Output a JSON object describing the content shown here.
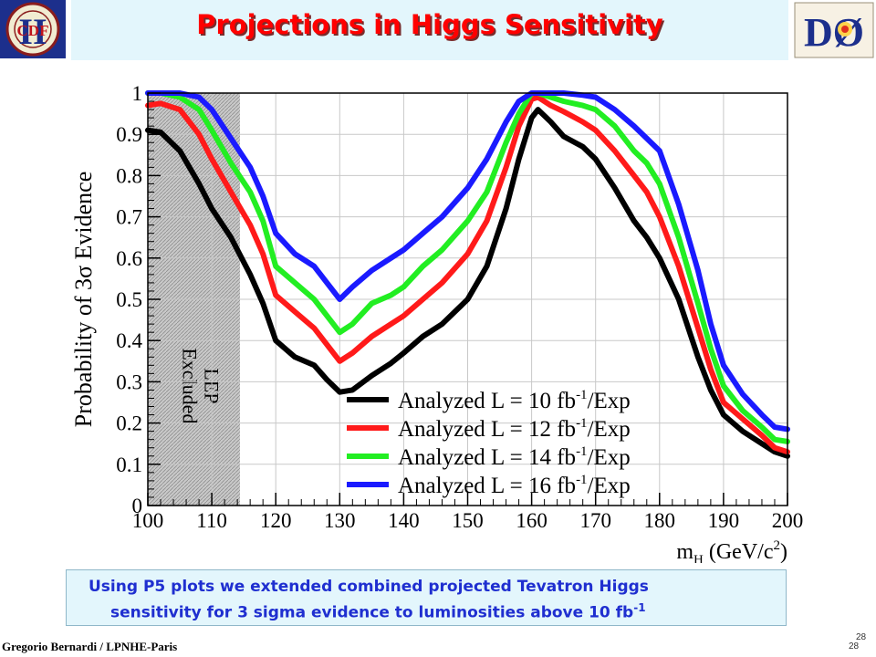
{
  "header": {
    "title": "Projections in Higgs Sensitivity",
    "left_logo": {
      "icon": "cdf-logo-icon",
      "text": "CDF",
      "big_letter": "II"
    },
    "right_logo": {
      "icon": "d0-logo-icon",
      "text": "DØ"
    }
  },
  "chart_data": {
    "type": "line",
    "title": "",
    "xlabel": "m",
    "xlabel_sub": "H",
    "xlabel_units": "(GeV/c",
    "xlabel_units_sup": "2",
    "xlabel_units_end": ")",
    "ylabel": "Probability of 3σ Evidence",
    "xlim": [
      100,
      200
    ],
    "ylim": [
      0,
      1
    ],
    "x_ticks": [
      "100",
      "110",
      "120",
      "130",
      "140",
      "150",
      "160",
      "170",
      "180",
      "190",
      "200"
    ],
    "y_ticks": [
      "0",
      "0.1",
      "0.2",
      "0.3",
      "0.4",
      "0.5",
      "0.6",
      "0.7",
      "0.8",
      "0.9",
      "1"
    ],
    "grid": true,
    "legend_position": "bottom-right",
    "excluded_region": {
      "from": 100,
      "to": 114.4,
      "label_line1": "LEP",
      "label_line2": "Excluded"
    },
    "x": [
      100,
      102,
      105,
      108,
      110,
      113,
      116,
      118,
      120,
      123,
      126,
      128,
      130,
      132,
      135,
      138,
      140,
      143,
      146,
      150,
      153,
      156,
      158,
      160,
      161,
      163,
      165,
      168,
      170,
      173,
      176,
      178,
      180,
      183,
      186,
      188,
      190,
      193,
      196,
      198,
      200
    ],
    "series": [
      {
        "name": "Analyzed L = 10 fb-1/Exp",
        "legend_prefix": "Analyzed L = 10 fb",
        "legend_sup": "-1",
        "legend_suffix": "/Exp",
        "color": "#000000",
        "values": [
          0.91,
          0.905,
          0.86,
          0.78,
          0.72,
          0.65,
          0.56,
          0.49,
          0.4,
          0.36,
          0.34,
          0.305,
          0.275,
          0.28,
          0.315,
          0.345,
          0.37,
          0.41,
          0.44,
          0.5,
          0.58,
          0.72,
          0.84,
          0.94,
          0.96,
          0.93,
          0.895,
          0.87,
          0.84,
          0.77,
          0.69,
          0.65,
          0.6,
          0.5,
          0.36,
          0.28,
          0.22,
          0.18,
          0.15,
          0.13,
          0.12
        ]
      },
      {
        "name": "Analyzed L = 12 fb-1/Exp",
        "legend_prefix": "Analyzed L = 12 fb",
        "legend_sup": "-1",
        "legend_suffix": "/Exp",
        "color": "#ff1a1a",
        "values": [
          0.97,
          0.975,
          0.96,
          0.9,
          0.84,
          0.76,
          0.68,
          0.61,
          0.51,
          0.47,
          0.43,
          0.39,
          0.35,
          0.37,
          0.41,
          0.44,
          0.46,
          0.5,
          0.54,
          0.61,
          0.69,
          0.82,
          0.92,
          0.985,
          0.99,
          0.97,
          0.955,
          0.93,
          0.91,
          0.86,
          0.8,
          0.76,
          0.7,
          0.58,
          0.43,
          0.33,
          0.25,
          0.21,
          0.17,
          0.14,
          0.13
        ]
      },
      {
        "name": "Analyzed L = 14 fb-1/Exp",
        "legend_prefix": "Analyzed L = 14 fb",
        "legend_sup": "-1",
        "legend_suffix": "/Exp",
        "color": "#22ee22",
        "values": [
          1.0,
          1.0,
          0.99,
          0.96,
          0.91,
          0.83,
          0.76,
          0.69,
          0.58,
          0.54,
          0.5,
          0.46,
          0.42,
          0.44,
          0.49,
          0.51,
          0.53,
          0.58,
          0.62,
          0.69,
          0.76,
          0.88,
          0.95,
          1.0,
          1.0,
          0.99,
          0.98,
          0.97,
          0.96,
          0.92,
          0.86,
          0.83,
          0.78,
          0.65,
          0.49,
          0.38,
          0.29,
          0.23,
          0.19,
          0.16,
          0.155
        ]
      },
      {
        "name": "Analyzed L = 16 fb-1/Exp",
        "legend_prefix": "Analyzed L = 16 fb",
        "legend_sup": "-1",
        "legend_suffix": "/Exp",
        "color": "#1a1aff",
        "values": [
          1.0,
          1.0,
          1.0,
          0.99,
          0.96,
          0.89,
          0.82,
          0.75,
          0.66,
          0.61,
          0.58,
          0.54,
          0.5,
          0.53,
          0.57,
          0.6,
          0.62,
          0.66,
          0.7,
          0.77,
          0.84,
          0.93,
          0.98,
          1.0,
          1.0,
          1.0,
          1.0,
          0.995,
          0.99,
          0.96,
          0.92,
          0.89,
          0.86,
          0.73,
          0.57,
          0.44,
          0.34,
          0.27,
          0.22,
          0.19,
          0.185
        ]
      }
    ]
  },
  "caption": {
    "line1": "Using P5 plots we extended combined projected Tevatron Higgs",
    "line2": "sensitivity for 3 sigma evidence to luminosities above 10 fb",
    "line2_sup": "-1"
  },
  "footer": {
    "author": "Gregorio Bernardi / LPNHE-Paris",
    "page_top": "28",
    "page_bottom": "28"
  }
}
